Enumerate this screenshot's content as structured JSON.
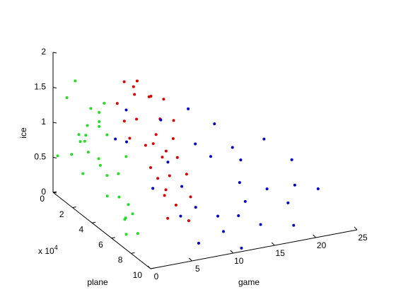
{
  "chart_data": {
    "type": "scatter3d",
    "xlabel": "game",
    "ylabel": "plane",
    "zlabel": "ice",
    "y_scale_label": {
      "base": "x 10",
      "exponent": "4"
    },
    "xlim": [
      0,
      25
    ],
    "xticks": [
      0,
      5,
      10,
      15,
      20,
      25
    ],
    "ylim": [
      0,
      10
    ],
    "yticks": [
      0,
      2,
      4,
      6,
      8,
      10
    ],
    "zlim": [
      0,
      2
    ],
    "zticks": [
      0,
      0.5,
      1,
      1.5,
      2
    ],
    "series": [
      {
        "color": "#22dd22",
        "x": [
          0.5,
          1.2,
          0.8,
          2.1,
          1.5,
          0.3,
          2.8,
          1.0,
          1.9,
          0.6,
          2.4,
          1.3,
          0.9,
          3.0,
          1.7,
          0.4,
          2.2,
          1.1,
          2.6,
          0.7,
          1.4,
          2.0,
          0.2,
          1.8,
          2.9,
          1.6,
          0.5,
          2.3,
          1.0,
          3.2
        ],
        "y": [
          1.0,
          2.5,
          4.0,
          0.5,
          5.5,
          3.0,
          1.5,
          6.5,
          2.0,
          7.0,
          3.5,
          0.8,
          4.8,
          2.7,
          6.0,
          5.2,
          1.2,
          3.8,
          4.5,
          2.2,
          7.5,
          5.8,
          0.3,
          3.2,
          0.9,
          6.8,
          4.3,
          2.9,
          1.8,
          5.0
        ],
        "z": [
          1.45,
          1.2,
          0.9,
          1.6,
          0.5,
          1.05,
          1.3,
          0.3,
          0.75,
          0.15,
          1.15,
          0.6,
          0.45,
          1.5,
          0.25,
          0.8,
          0.35,
          1.4,
          0.7,
          0.95,
          0.2,
          1.1,
          0.55,
          1.25,
          0.85,
          0.4,
          1.6,
          0.65,
          1.0,
          0.3
        ]
      },
      {
        "color": "#dd0000",
        "x": [
          6,
          7.5,
          8,
          9,
          6.5,
          10,
          7,
          8.5,
          11,
          9.5,
          5.5,
          7.8,
          10.5,
          6.8,
          8.2,
          9.2,
          12,
          7.2,
          6.2,
          8.8,
          10.8,
          7.6,
          9.8,
          5.8,
          11.5,
          8.4,
          6.6,
          9.4,
          7.4,
          10.2
        ],
        "y": [
          1.5,
          2.0,
          3.5,
          1.0,
          4.5,
          2.5,
          5.5,
          4.0,
          3.0,
          1.8,
          3.2,
          6.0,
          4.8,
          2.8,
          5.0,
          3.8,
          2.2,
          1.2,
          6.5,
          0.8,
          3.6,
          4.3,
          5.8,
          2.4,
          1.6,
          6.8,
          3.9,
          2.6,
          5.3,
          1.4
        ],
        "z": [
          1.3,
          1.45,
          0.9,
          1.5,
          0.7,
          1.1,
          0.4,
          0.75,
          0.85,
          1.35,
          1.0,
          0.3,
          0.55,
          1.2,
          0.6,
          0.8,
          1.0,
          1.55,
          0.2,
          1.4,
          0.65,
          0.5,
          0.35,
          1.15,
          1.25,
          0.15,
          0.95,
          0.9,
          0.45,
          1.3
        ]
      },
      {
        "color": "#0000cc",
        "x": [
          4,
          8,
          12,
          15,
          18,
          22,
          6,
          10,
          14,
          20,
          5,
          9,
          13,
          17,
          25,
          7,
          11,
          16,
          19,
          3,
          21,
          12.5,
          8.5,
          14.5,
          6.5,
          23,
          10.5,
          15.5,
          18.5,
          9.5
        ],
        "y": [
          3,
          5,
          6,
          7,
          4,
          3,
          8,
          9,
          2,
          5,
          6,
          7,
          8,
          4,
          6,
          9,
          10,
          3,
          8,
          5,
          7,
          4,
          6,
          9,
          2,
          5,
          8,
          6,
          9,
          3
        ],
        "z": [
          1.0,
          0.8,
          0.9,
          0.3,
          0.5,
          0.6,
          0.4,
          0.2,
          1.1,
          0.15,
          0.6,
          0.35,
          0.25,
          0.7,
          0.15,
          0.1,
          0.05,
          0.95,
          0.3,
          1.2,
          0.4,
          0.85,
          0.55,
          0.2,
          1.25,
          0.5,
          0.3,
          0.45,
          0.1,
          1.15
        ]
      }
    ]
  }
}
